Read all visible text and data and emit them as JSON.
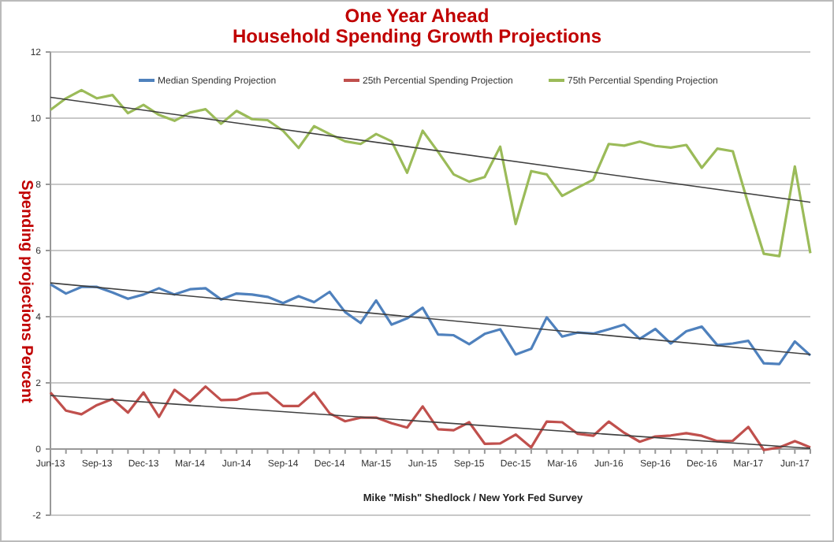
{
  "chart_data": {
    "type": "line",
    "title": "One Year Ahead",
    "subtitle": "Household Spending Growth Projections",
    "ylabel": "Spending projections  Percent",
    "annotations": [
      "Mike \"Mish\" Shedlock / New York Fed Survey"
    ],
    "categories": [
      "Jun-13",
      null,
      null,
      "Sep-13",
      null,
      null,
      "Dec-13",
      null,
      null,
      "Mar-14",
      null,
      null,
      "Jun-14",
      null,
      null,
      "Sep-14",
      null,
      null,
      "Dec-14",
      null,
      null,
      "Mar-15",
      null,
      null,
      "Jun-15",
      null,
      null,
      "Sep-15",
      null,
      null,
      "Dec-15",
      null,
      null,
      "Mar-16",
      null,
      null,
      "Jun-16",
      null,
      null,
      "Sep-16",
      null,
      null,
      "Dec-16",
      null,
      null,
      "Mar-17",
      null,
      null,
      "Jun-17",
      null
    ],
    "series": [
      {
        "name": "Median Spending Projection",
        "color": "#4f81bd",
        "values": [
          4.98,
          4.7,
          4.9,
          4.9,
          4.73,
          4.54,
          4.67,
          4.86,
          4.67,
          4.83,
          4.86,
          4.52,
          4.7,
          4.67,
          4.6,
          4.41,
          4.62,
          4.44,
          4.75,
          4.14,
          3.81,
          4.49,
          3.76,
          3.95,
          4.27,
          3.46,
          3.44,
          3.17,
          3.48,
          3.62,
          2.86,
          3.03,
          3.98,
          3.4,
          3.52,
          3.49,
          3.62,
          3.76,
          3.33,
          3.63,
          3.19,
          3.56,
          3.7,
          3.14,
          3.19,
          3.27,
          2.59,
          2.57,
          3.25,
          2.83
        ]
      },
      {
        "name": "25th Percential Spending Projection",
        "color": "#c0504d",
        "values": [
          1.71,
          1.16,
          1.05,
          1.33,
          1.51,
          1.1,
          1.71,
          0.97,
          1.79,
          1.44,
          1.89,
          1.48,
          1.49,
          1.67,
          1.7,
          1.3,
          1.3,
          1.71,
          1.08,
          0.84,
          0.95,
          0.95,
          0.78,
          0.65,
          1.29,
          0.6,
          0.57,
          0.81,
          0.16,
          0.17,
          0.44,
          0.05,
          0.83,
          0.81,
          0.46,
          0.4,
          0.83,
          0.49,
          0.22,
          0.38,
          0.41,
          0.48,
          0.4,
          0.24,
          0.25,
          0.67,
          -0.03,
          0.05,
          0.24,
          0.05
        ]
      },
      {
        "name": "75th Percential Spending Projection",
        "color": "#9bbb59",
        "values": [
          10.25,
          10.6,
          10.85,
          10.6,
          10.7,
          10.15,
          10.4,
          10.1,
          9.92,
          10.17,
          10.27,
          9.83,
          10.22,
          9.97,
          9.94,
          9.62,
          9.1,
          9.76,
          9.52,
          9.3,
          9.22,
          9.52,
          9.3,
          8.35,
          9.62,
          8.98,
          8.3,
          8.08,
          8.22,
          9.14,
          6.8,
          8.4,
          8.3,
          7.65,
          7.9,
          8.14,
          9.22,
          9.17,
          9.29,
          9.16,
          9.11,
          9.19,
          8.5,
          9.08,
          9.0,
          7.4,
          5.9,
          5.83,
          8.54,
          5.92
        ]
      },
      {
        "type": "line",
        "color": "#404040",
        "values": [
          5.02,
          null,
          null,
          null,
          null,
          null,
          null,
          null,
          null,
          null,
          null,
          null,
          null,
          null,
          null,
          null,
          null,
          null,
          null,
          null,
          null,
          null,
          null,
          null,
          null,
          null,
          null,
          null,
          null,
          null,
          null,
          null,
          null,
          null,
          null,
          null,
          null,
          null,
          null,
          null,
          null,
          null,
          null,
          null,
          null,
          null,
          null,
          null,
          null,
          2.86
        ]
      },
      {
        "type": "line",
        "color": "#404040",
        "values": [
          1.62,
          null,
          null,
          null,
          null,
          null,
          null,
          null,
          null,
          null,
          null,
          null,
          null,
          null,
          null,
          null,
          null,
          null,
          null,
          null,
          null,
          null,
          null,
          null,
          null,
          null,
          null,
          null,
          null,
          null,
          null,
          null,
          null,
          null,
          null,
          null,
          null,
          null,
          null,
          null,
          null,
          null,
          null,
          null,
          null,
          null,
          null,
          null,
          null,
          0.02
        ]
      },
      {
        "type": "line",
        "color": "#404040",
        "values": [
          10.63,
          null,
          null,
          null,
          null,
          null,
          null,
          null,
          null,
          null,
          null,
          null,
          null,
          null,
          null,
          null,
          null,
          null,
          null,
          null,
          null,
          null,
          null,
          null,
          null,
          null,
          null,
          null,
          null,
          null,
          null,
          null,
          null,
          null,
          null,
          null,
          null,
          null,
          null,
          null,
          null,
          null,
          null,
          null,
          null,
          null,
          null,
          null,
          null,
          7.46
        ]
      }
    ],
    "ylim": [
      -2,
      12
    ],
    "yticks": [
      -2,
      0,
      2,
      4,
      6,
      8,
      10,
      12
    ],
    "grid": "y",
    "legend": "top"
  }
}
